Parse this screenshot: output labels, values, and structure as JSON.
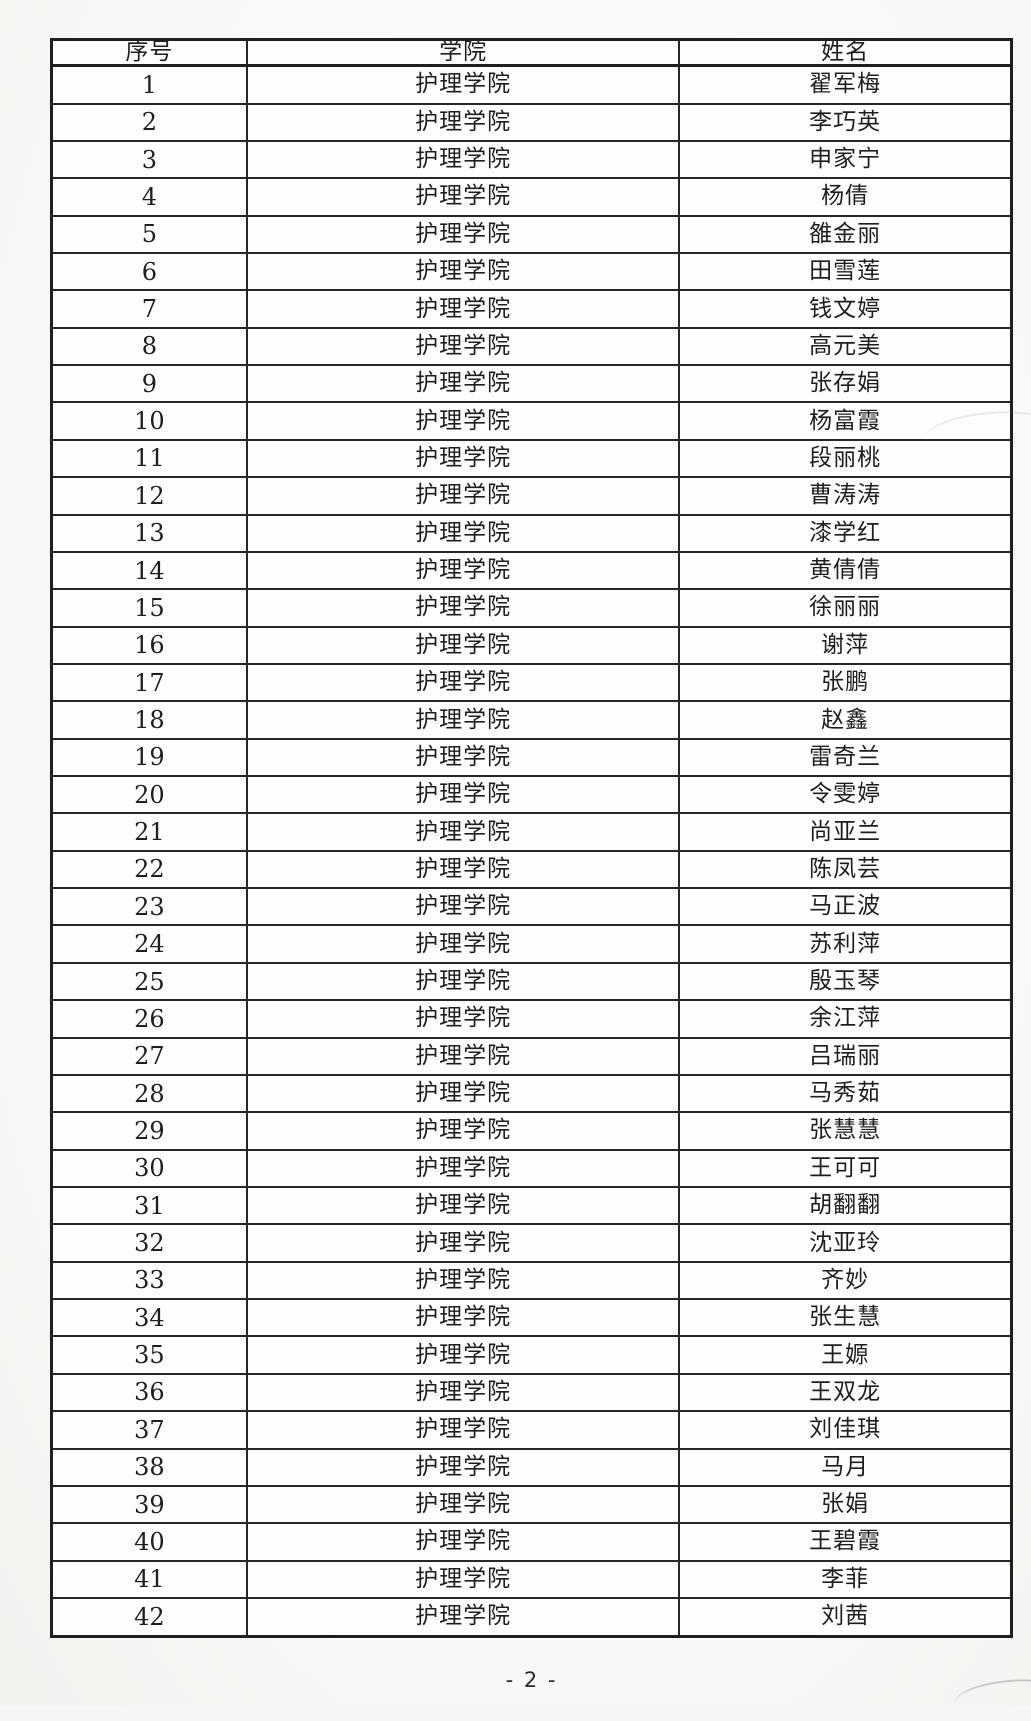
{
  "table": {
    "columns": [
      {
        "label": "序号"
      },
      {
        "label": "学院"
      },
      {
        "label": "姓名"
      }
    ],
    "rows": [
      {
        "no": "1",
        "college": "护理学院",
        "name": "翟军梅"
      },
      {
        "no": "2",
        "college": "护理学院",
        "name": "李巧英"
      },
      {
        "no": "3",
        "college": "护理学院",
        "name": "申家宁"
      },
      {
        "no": "4",
        "college": "护理学院",
        "name": "杨倩"
      },
      {
        "no": "5",
        "college": "护理学院",
        "name": "雒金丽"
      },
      {
        "no": "6",
        "college": "护理学院",
        "name": "田雪莲"
      },
      {
        "no": "7",
        "college": "护理学院",
        "name": "钱文婷"
      },
      {
        "no": "8",
        "college": "护理学院",
        "name": "高元美"
      },
      {
        "no": "9",
        "college": "护理学院",
        "name": "张存娟"
      },
      {
        "no": "10",
        "college": "护理学院",
        "name": "杨富霞"
      },
      {
        "no": "11",
        "college": "护理学院",
        "name": "段丽桃"
      },
      {
        "no": "12",
        "college": "护理学院",
        "name": "曹涛涛"
      },
      {
        "no": "13",
        "college": "护理学院",
        "name": "漆学红"
      },
      {
        "no": "14",
        "college": "护理学院",
        "name": "黄倩倩"
      },
      {
        "no": "15",
        "college": "护理学院",
        "name": "徐丽丽"
      },
      {
        "no": "16",
        "college": "护理学院",
        "name": "谢萍"
      },
      {
        "no": "17",
        "college": "护理学院",
        "name": "张鹏"
      },
      {
        "no": "18",
        "college": "护理学院",
        "name": "赵鑫"
      },
      {
        "no": "19",
        "college": "护理学院",
        "name": "雷奇兰"
      },
      {
        "no": "20",
        "college": "护理学院",
        "name": "令雯婷"
      },
      {
        "no": "21",
        "college": "护理学院",
        "name": "尚亚兰"
      },
      {
        "no": "22",
        "college": "护理学院",
        "name": "陈凤芸"
      },
      {
        "no": "23",
        "college": "护理学院",
        "name": "马正波"
      },
      {
        "no": "24",
        "college": "护理学院",
        "name": "苏利萍"
      },
      {
        "no": "25",
        "college": "护理学院",
        "name": "殷玉琴"
      },
      {
        "no": "26",
        "college": "护理学院",
        "name": "余江萍"
      },
      {
        "no": "27",
        "college": "护理学院",
        "name": "吕瑞丽"
      },
      {
        "no": "28",
        "college": "护理学院",
        "name": "马秀茹"
      },
      {
        "no": "29",
        "college": "护理学院",
        "name": "张慧慧"
      },
      {
        "no": "30",
        "college": "护理学院",
        "name": "王可可"
      },
      {
        "no": "31",
        "college": "护理学院",
        "name": "胡翻翻"
      },
      {
        "no": "32",
        "college": "护理学院",
        "name": "沈亚玲"
      },
      {
        "no": "33",
        "college": "护理学院",
        "name": "齐妙"
      },
      {
        "no": "34",
        "college": "护理学院",
        "name": "张生慧"
      },
      {
        "no": "35",
        "college": "护理学院",
        "name": "王嫄"
      },
      {
        "no": "36",
        "college": "护理学院",
        "name": "王双龙"
      },
      {
        "no": "37",
        "college": "护理学院",
        "name": "刘佳琪"
      },
      {
        "no": "38",
        "college": "护理学院",
        "name": "马月"
      },
      {
        "no": "39",
        "college": "护理学院",
        "name": "张娟"
      },
      {
        "no": "40",
        "college": "护理学院",
        "name": "王碧霞"
      },
      {
        "no": "41",
        "college": "护理学院",
        "name": "李菲"
      },
      {
        "no": "42",
        "college": "护理学院",
        "name": "刘茜"
      }
    ]
  },
  "footer": {
    "page_label": "- 2 -"
  },
  "colors": {
    "border": "#272727",
    "text": "#1e1e1e",
    "page_background": "#f8f8f6",
    "cell_background": "#fdfdfc"
  }
}
